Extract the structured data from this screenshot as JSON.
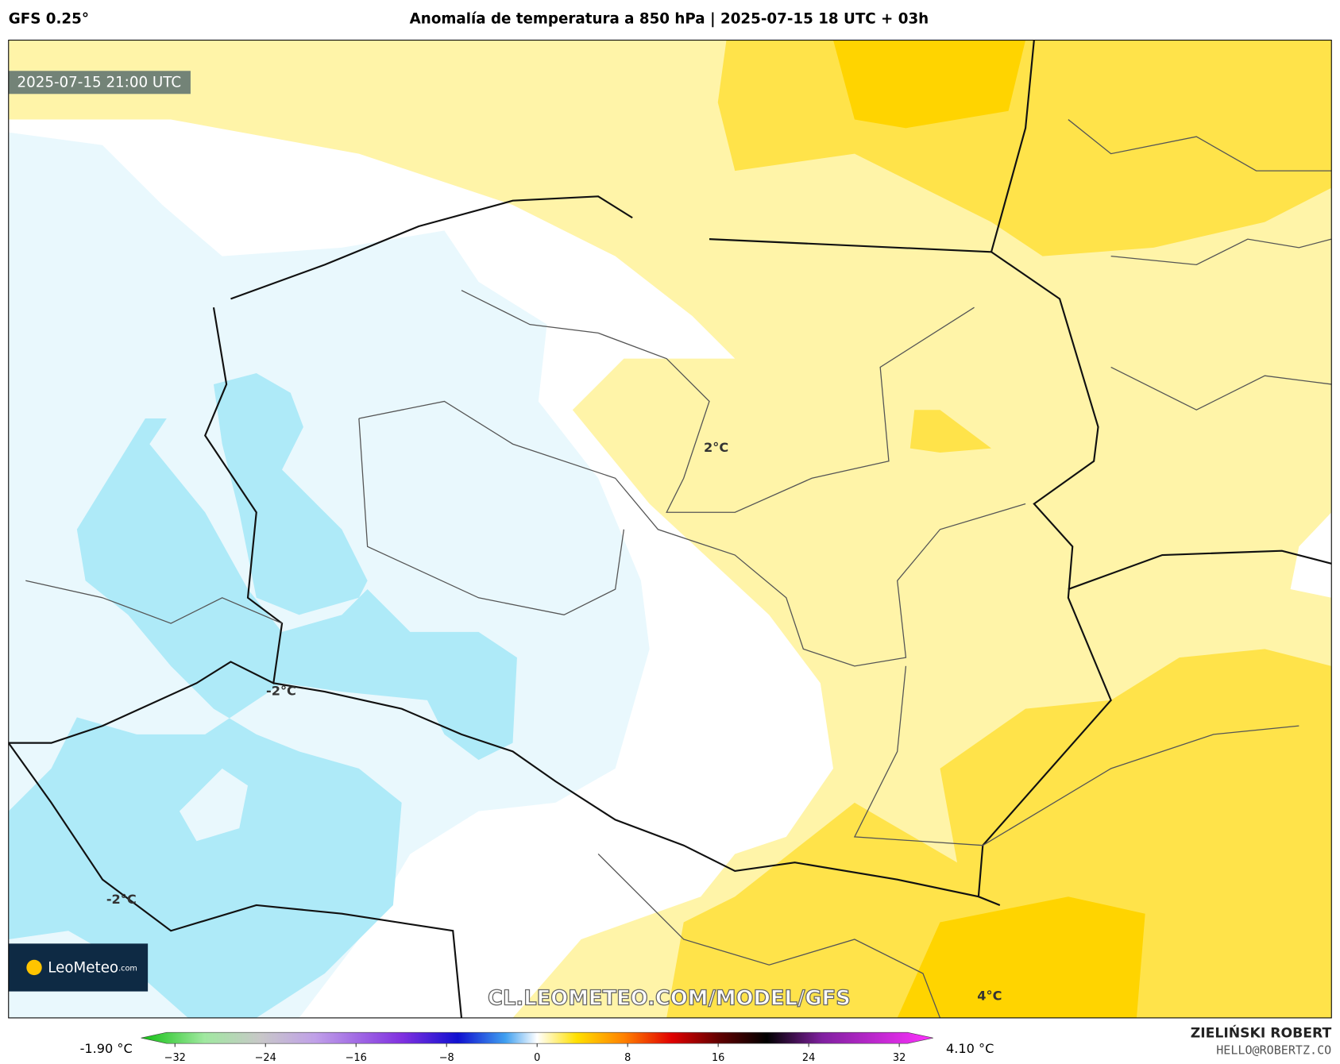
{
  "header": {
    "model": "GFS 0.25°",
    "title": "Anomalía de temperatura a 850 hPa | 2025-07-15 18 UTC + 03h"
  },
  "map": {
    "valid_time": "2025-07-15 21:00 UTC",
    "contour_labels": [
      "2°C",
      "-2°C",
      "-2°C",
      "4°C"
    ],
    "watermark": "CL.LEOMETEO.COM/MODEL/GFS",
    "logo": "LeoMeteo",
    "logo_suffix": ".com"
  },
  "colorbar": {
    "min_label": "-1.90 °C",
    "max_label": "4.10 °C",
    "lim": [
      -35,
      35
    ],
    "ticks": [
      {
        "value": -32,
        "label": "−32"
      },
      {
        "value": -24,
        "label": "−24"
      },
      {
        "value": -16,
        "label": "−16"
      },
      {
        "value": -8,
        "label": "−8"
      },
      0,
      8,
      16,
      24,
      32
    ]
  },
  "credits": {
    "author": "ZIELIŃSKI ROBERT",
    "email": "HELLO@ROBERTZ.CO"
  }
}
